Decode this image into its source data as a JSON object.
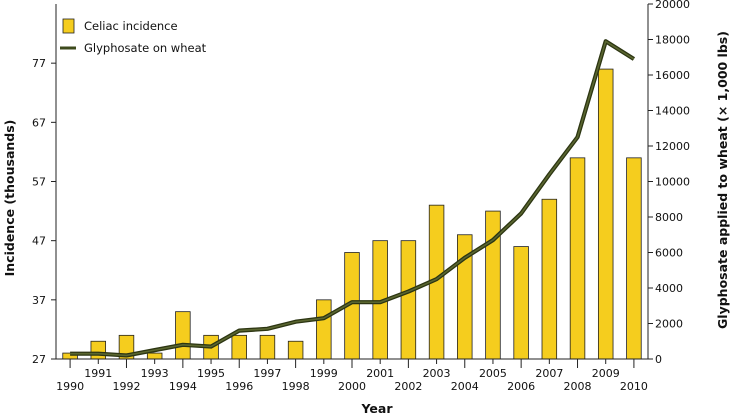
{
  "chart_data": {
    "type": "bar",
    "xlabel": "Year",
    "ylabel": "Incidence (thousands)",
    "y2label": "Glyphosate applied to wheat (× 1,000 lbs)",
    "categories": [
      "1990",
      "1991",
      "1992",
      "1993",
      "1994",
      "1995",
      "1996",
      "1997",
      "1998",
      "1999",
      "2000",
      "2001",
      "2002",
      "2003",
      "2004",
      "2005",
      "2006",
      "2007",
      "2008",
      "2009",
      "2010"
    ],
    "series": [
      {
        "name": "Celiac incidence",
        "kind": "bar",
        "axis": "left",
        "color": "#f5cd1e",
        "values": [
          28,
          30,
          31,
          28,
          35,
          31,
          31,
          31,
          30,
          37,
          45,
          47,
          47,
          53,
          48,
          52,
          46,
          54,
          61,
          76,
          61
        ]
      },
      {
        "name": "Glyphosate on wheat",
        "kind": "line",
        "axis": "right",
        "color": "#3d4a1c",
        "values": [
          300,
          300,
          200,
          500,
          800,
          700,
          1600,
          1700,
          2100,
          2300,
          3200,
          3200,
          3800,
          4500,
          5700,
          6700,
          8200,
          10400,
          12500,
          17900,
          16900
        ]
      }
    ],
    "ylim": [
      27,
      87
    ],
    "y_ticks": [
      "27",
      "37",
      "47",
      "57",
      "67",
      "77"
    ],
    "y2lim": [
      0,
      20000
    ],
    "y2_ticks": [
      "0",
      "2000",
      "4000",
      "6000",
      "8000",
      "10000",
      "12000",
      "14000",
      "16000",
      "18000",
      "20000"
    ],
    "legend_position": "top-left",
    "grid": false
  }
}
